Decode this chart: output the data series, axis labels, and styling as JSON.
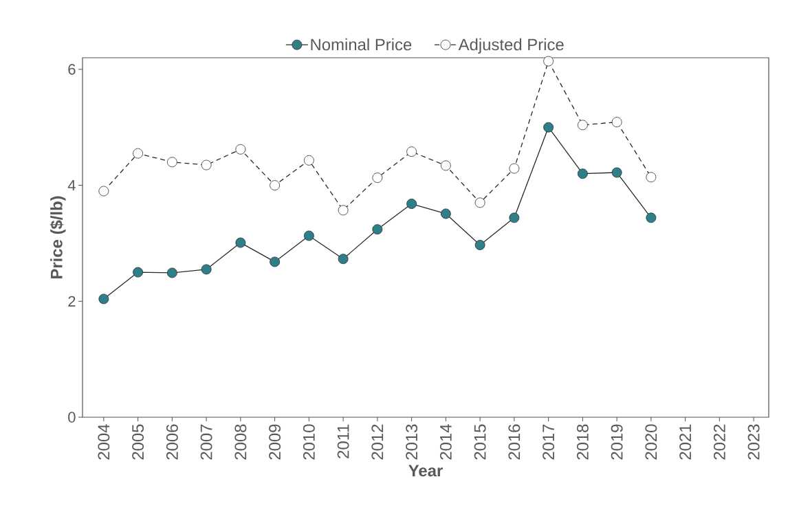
{
  "chart_data": {
    "type": "line",
    "xlabel": "Year",
    "ylabel": "Price ($/lb)",
    "categories": [
      "2004",
      "2005",
      "2006",
      "2007",
      "2008",
      "2009",
      "2010",
      "2011",
      "2012",
      "2013",
      "2014",
      "2015",
      "2016",
      "2017",
      "2018",
      "2019",
      "2020",
      "2021",
      "2022",
      "2023"
    ],
    "series": [
      {
        "name": "Nominal Price",
        "color": "#2e7f88",
        "marker": "circle",
        "line_style": "solid",
        "values": [
          2.04,
          2.5,
          2.49,
          2.55,
          3.01,
          2.68,
          3.13,
          2.73,
          3.24,
          3.68,
          3.51,
          2.97,
          3.44,
          5.0,
          4.2,
          4.22,
          3.44,
          null,
          null,
          null
        ]
      },
      {
        "name": "Adjusted Price",
        "color": "#ffffff",
        "marker": "circle",
        "line_style": "dashed",
        "values": [
          3.9,
          4.55,
          4.4,
          4.35,
          4.62,
          4.0,
          4.43,
          3.57,
          4.13,
          4.58,
          4.34,
          3.7,
          4.29,
          6.14,
          5.04,
          5.09,
          4.14,
          null,
          null,
          null
        ]
      }
    ],
    "ylim": [
      0,
      6.2
    ],
    "yticks": [
      0,
      2,
      4,
      6
    ],
    "grid": false,
    "legend": "top"
  }
}
